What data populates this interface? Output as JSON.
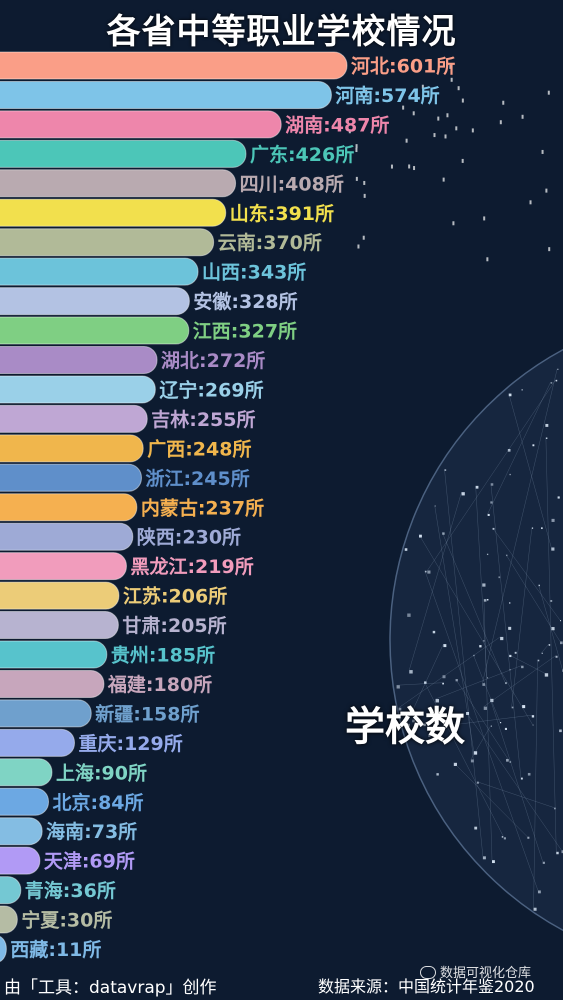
{
  "title": "各省中等职业学校情况",
  "metric_label": "学校数",
  "footer": {
    "credit": "由「工具：datavrap」创作",
    "source": "数据来源：中国统计年鉴2020",
    "watermark": "数据可视化仓库"
  },
  "icons": [
    "wechat-watermark-icon"
  ],
  "chart_data": {
    "type": "bar",
    "orientation": "horizontal",
    "unit": "所",
    "xlim": [
      0,
      601
    ],
    "categories": [
      "河北",
      "河南",
      "湖南",
      "广东",
      "四川",
      "山东",
      "云南",
      "山西",
      "安徽",
      "江西",
      "湖北",
      "辽宁",
      "吉林",
      "广西",
      "浙江",
      "内蒙古",
      "陕西",
      "黑龙江",
      "江苏",
      "甘肃",
      "贵州",
      "福建",
      "新疆",
      "重庆",
      "上海",
      "北京",
      "海南",
      "天津",
      "青海",
      "宁夏",
      "西藏"
    ],
    "values": [
      601,
      574,
      487,
      426,
      408,
      391,
      370,
      343,
      328,
      327,
      272,
      269,
      255,
      248,
      245,
      237,
      230,
      219,
      206,
      205,
      185,
      180,
      158,
      129,
      90,
      84,
      73,
      69,
      36,
      30,
      11
    ],
    "colors": [
      "#fa9e87",
      "#7ec4e8",
      "#ee86ab",
      "#4cc6b8",
      "#b9aab0",
      "#f2e04d",
      "#b1ba98",
      "#6cc3da",
      "#b3c2e3",
      "#7fcf83",
      "#a98bc6",
      "#9ad0e8",
      "#bfa7d4",
      "#f0b64c",
      "#5f8fca",
      "#f5b050",
      "#9eaad6",
      "#f19cbc",
      "#eccc78",
      "#b7b3d0",
      "#57c3cc",
      "#c7a6bc",
      "#6fa0cd",
      "#95aaeb",
      "#7fd4c4",
      "#6ca8e3",
      "#84bde3",
      "#b19af5",
      "#74c8d3",
      "#b5bca4",
      "#7fb9e6"
    ]
  }
}
